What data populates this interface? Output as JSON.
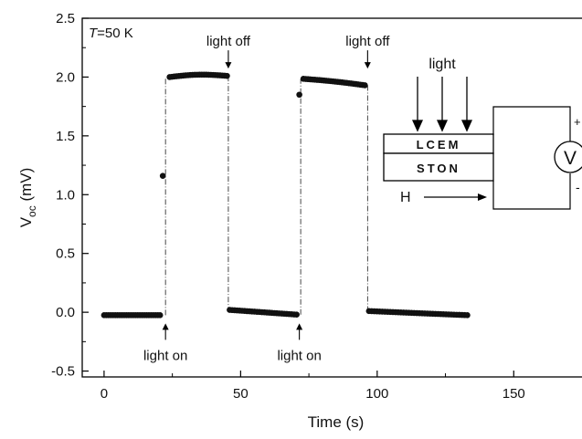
{
  "chart_data": {
    "type": "scatter",
    "title": "",
    "xlabel": "Time (s)",
    "ylabel_main": "V",
    "ylabel_sub": "oc",
    "ylabel_unit": " (mV)",
    "xlim": [
      -8,
      175
    ],
    "ylim": [
      -0.55,
      2.5
    ],
    "xticks": [
      0,
      50,
      100,
      150
    ],
    "yticks": [
      -0.5,
      0.0,
      0.5,
      1.0,
      1.5,
      2.0,
      2.5
    ],
    "ytick_labels": [
      "-0.5",
      "0.0",
      "0.5",
      "1.0",
      "1.5",
      "2.0",
      "2.5"
    ],
    "grid": false,
    "series": [
      {
        "segments": [
          {
            "x_start": 0,
            "x_end": 20.5,
            "n": 26,
            "y_start": -0.025,
            "y_end": -0.025,
            "hump": 0
          },
          {
            "x_start": 24,
            "x_end": 45,
            "n": 26,
            "y_start": 2.0,
            "y_end": 2.01,
            "hump": 0.015
          },
          {
            "x_start": 46,
            "x_end": 70.5,
            "n": 28,
            "y_start": 0.02,
            "y_end": -0.02,
            "hump": 0
          },
          {
            "x_start": 73,
            "x_end": 95.5,
            "n": 28,
            "y_start": 1.985,
            "y_end": 1.93,
            "hump": 0.005
          },
          {
            "x_start": 97,
            "x_end": 133,
            "n": 38,
            "y_start": 0.01,
            "y_end": -0.025,
            "hump": 0
          }
        ],
        "isolated_points": [
          {
            "x": 21.5,
            "y": 1.16
          },
          {
            "x": 71.5,
            "y": 1.85
          }
        ]
      }
    ],
    "transitions": [
      {
        "x": 22.5,
        "y_from": -0.025,
        "y_to": 2.0
      },
      {
        "x": 45.5,
        "y_from": 2.01,
        "y_to": 0.02
      },
      {
        "x": 72,
        "y_from": -0.02,
        "y_to": 1.985
      },
      {
        "x": 96.5,
        "y_from": 1.93,
        "y_to": 0.01
      }
    ],
    "annotations": [
      {
        "id": "light-on-1",
        "text": "light on",
        "x": 22.5,
        "arrow": "up"
      },
      {
        "id": "light-off-1",
        "text": "light off",
        "x": 45.5,
        "arrow": "down"
      },
      {
        "id": "light-on-2",
        "text": "light on",
        "x": 71.5,
        "arrow": "up"
      },
      {
        "id": "light-off-2",
        "text": "light off",
        "x": 96.5,
        "arrow": "down"
      }
    ],
    "temperature_label": {
      "symbol": "T",
      "text": "=50 K"
    },
    "inset": {
      "light_label": "light",
      "layer_top": "LCEM",
      "layer_bottom": "STON",
      "field_label": "H",
      "meter_label": "V",
      "plus": "+",
      "minus": "-"
    },
    "colors": {
      "marker": "#111111",
      "axis": "#000000",
      "transition_line": "#333333"
    }
  }
}
